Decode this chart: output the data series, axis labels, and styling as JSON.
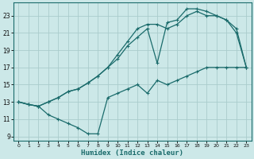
{
  "xlabel": "Humidex (Indice chaleur)",
  "bg_color": "#cce8e8",
  "grid_color": "#aacccc",
  "line_color": "#1a6b6b",
  "xlim": [
    -0.5,
    23.5
  ],
  "ylim": [
    8.5,
    24.5
  ],
  "xticks": [
    0,
    1,
    2,
    3,
    4,
    5,
    6,
    7,
    8,
    9,
    10,
    11,
    12,
    13,
    14,
    15,
    16,
    17,
    18,
    19,
    20,
    21,
    22,
    23
  ],
  "yticks": [
    9,
    11,
    13,
    15,
    17,
    19,
    21,
    23
  ],
  "line1_x": [
    0,
    1,
    2,
    3,
    4,
    5,
    6,
    7,
    8,
    9,
    10,
    11,
    12,
    13,
    14,
    15,
    16,
    17,
    18,
    19,
    20,
    21,
    22,
    23
  ],
  "line1_y": [
    13.0,
    12.7,
    12.5,
    11.5,
    11.0,
    10.5,
    10.0,
    9.3,
    9.3,
    13.5,
    14.0,
    14.5,
    15.0,
    14.0,
    15.5,
    15.0,
    15.5,
    16.0,
    16.5,
    17.0,
    17.0,
    17.0,
    17.0,
    17.0
  ],
  "line2_x": [
    0,
    1,
    2,
    3,
    4,
    5,
    6,
    7,
    8,
    9,
    10,
    11,
    12,
    13,
    14,
    15,
    16,
    17,
    18,
    19,
    20,
    21,
    22,
    23
  ],
  "line2_y": [
    13.0,
    12.7,
    12.5,
    13.0,
    13.5,
    14.2,
    14.5,
    15.2,
    16.0,
    17.0,
    18.0,
    19.5,
    20.5,
    21.5,
    17.5,
    22.2,
    22.5,
    23.8,
    23.8,
    23.5,
    23.0,
    22.5,
    21.5,
    17.0
  ],
  "line3_x": [
    0,
    1,
    2,
    3,
    4,
    5,
    6,
    7,
    8,
    9,
    10,
    11,
    12,
    13,
    14,
    15,
    16,
    17,
    18,
    19,
    20,
    21,
    22,
    23
  ],
  "line3_y": [
    13.0,
    12.7,
    12.5,
    13.0,
    13.5,
    14.2,
    14.5,
    15.2,
    16.0,
    17.0,
    18.5,
    20.0,
    21.5,
    22.0,
    22.0,
    21.5,
    22.0,
    23.0,
    23.5,
    23.0,
    23.0,
    22.5,
    21.0,
    17.0
  ]
}
